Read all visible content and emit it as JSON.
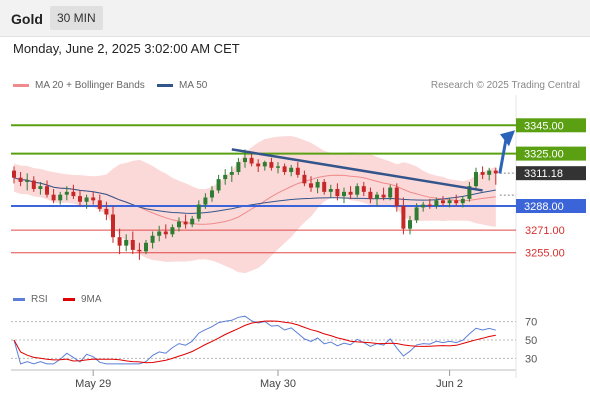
{
  "header": {
    "symbol": "Gold",
    "timeframe": "30 MIN"
  },
  "datetime": "Monday, June 2, 2025 3:02:00 AM CET",
  "legend": {
    "ma20": {
      "label": "MA 20 + Bollinger Bands",
      "color": "#f08a8a"
    },
    "ma50": {
      "label": "MA 50",
      "color": "#34558b"
    }
  },
  "research": "Research © 2025 Trading Central",
  "rsi_legend": {
    "rsi": {
      "label": "RSI",
      "color": "#5b7fd6"
    },
    "ma9": {
      "label": "9MA",
      "color": "#e00000"
    }
  },
  "chart_data": {
    "type": "candlestick",
    "price_range": [
      3250,
      3350
    ],
    "levels": [
      {
        "label": "3345.00",
        "value": 3345,
        "color": "#5aa012",
        "style": "resistance"
      },
      {
        "label": "3325.00",
        "value": 3325,
        "color": "#5aa012",
        "style": "resistance"
      },
      {
        "label": "3311.18",
        "value": 3311.18,
        "color": "#333333",
        "style": "last"
      },
      {
        "label": "3288.00",
        "value": 3288,
        "color": "#3a64d8",
        "style": "pivot"
      },
      {
        "label": "3271.00",
        "value": 3271,
        "color": "#e04848",
        "style": "support"
      },
      {
        "label": "3255.00",
        "value": 3255,
        "color": "#e04848",
        "style": "support"
      }
    ],
    "x_ticks": [
      "May 29",
      "May 30",
      "Jun 2"
    ],
    "rsi_ticks": [
      70,
      50,
      30
    ],
    "candles": [
      [
        3313,
        3316,
        3304,
        3308
      ],
      [
        3308,
        3312,
        3302,
        3305
      ],
      [
        3305,
        3311,
        3299,
        3306
      ],
      [
        3306,
        3309,
        3298,
        3300
      ],
      [
        3300,
        3305,
        3296,
        3302
      ],
      [
        3302,
        3306,
        3294,
        3296
      ],
      [
        3296,
        3300,
        3290,
        3292
      ],
      [
        3292,
        3298,
        3289,
        3296
      ],
      [
        3296,
        3302,
        3292,
        3298
      ],
      [
        3298,
        3303,
        3293,
        3295
      ],
      [
        3295,
        3299,
        3288,
        3291
      ],
      [
        3291,
        3296,
        3286,
        3294
      ],
      [
        3294,
        3298,
        3289,
        3292
      ],
      [
        3292,
        3296,
        3284,
        3286
      ],
      [
        3286,
        3291,
        3278,
        3282
      ],
      [
        3282,
        3288,
        3262,
        3266
      ],
      [
        3266,
        3272,
        3254,
        3260
      ],
      [
        3260,
        3268,
        3256,
        3264
      ],
      [
        3264,
        3270,
        3254,
        3257
      ],
      [
        3257,
        3262,
        3250,
        3256
      ],
      [
        3256,
        3264,
        3254,
        3262
      ],
      [
        3262,
        3270,
        3258,
        3267
      ],
      [
        3267,
        3274,
        3263,
        3270
      ],
      [
        3270,
        3275,
        3265,
        3268
      ],
      [
        3268,
        3275,
        3266,
        3273
      ],
      [
        3273,
        3280,
        3270,
        3277
      ],
      [
        3277,
        3282,
        3272,
        3275
      ],
      [
        3275,
        3281,
        3273,
        3279
      ],
      [
        3279,
        3292,
        3277,
        3289
      ],
      [
        3289,
        3297,
        3286,
        3294
      ],
      [
        3294,
        3302,
        3291,
        3299
      ],
      [
        3299,
        3310,
        3297,
        3307
      ],
      [
        3307,
        3314,
        3303,
        3310
      ],
      [
        3310,
        3316,
        3305,
        3312
      ],
      [
        3312,
        3322,
        3310,
        3319
      ],
      [
        3319,
        3328,
        3315,
        3322
      ],
      [
        3322,
        3326,
        3316,
        3318
      ],
      [
        3318,
        3321,
        3312,
        3316
      ],
      [
        3316,
        3320,
        3313,
        3319
      ],
      [
        3319,
        3322,
        3313,
        3315
      ],
      [
        3315,
        3319,
        3311,
        3316
      ],
      [
        3316,
        3318,
        3310,
        3312
      ],
      [
        3312,
        3317,
        3309,
        3315
      ],
      [
        3315,
        3319,
        3308,
        3310
      ],
      [
        3310,
        3313,
        3302,
        3304
      ],
      [
        3304,
        3309,
        3298,
        3301
      ],
      [
        3301,
        3307,
        3297,
        3305
      ],
      [
        3305,
        3307,
        3296,
        3298
      ],
      [
        3298,
        3303,
        3294,
        3300
      ],
      [
        3300,
        3304,
        3292,
        3295
      ],
      [
        3295,
        3301,
        3290,
        3298
      ],
      [
        3298,
        3302,
        3293,
        3296
      ],
      [
        3296,
        3304,
        3294,
        3302
      ],
      [
        3302,
        3305,
        3295,
        3298
      ],
      [
        3298,
        3301,
        3290,
        3293
      ],
      [
        3293,
        3298,
        3288,
        3296
      ],
      [
        3296,
        3301,
        3292,
        3294
      ],
      [
        3294,
        3303,
        3292,
        3301
      ],
      [
        3301,
        3304,
        3284,
        3288
      ],
      [
        3288,
        3294,
        3268,
        3272
      ],
      [
        3272,
        3281,
        3268,
        3278
      ],
      [
        3278,
        3290,
        3276,
        3287
      ],
      [
        3287,
        3291,
        3284,
        3289
      ],
      [
        3289,
        3293,
        3286,
        3288
      ],
      [
        3288,
        3294,
        3286,
        3292
      ],
      [
        3292,
        3295,
        3288,
        3290
      ],
      [
        3290,
        3294,
        3287,
        3292
      ],
      [
        3292,
        3296,
        3288,
        3290
      ],
      [
        3290,
        3295,
        3287,
        3293
      ],
      [
        3293,
        3305,
        3291,
        3302
      ],
      [
        3302,
        3315,
        3300,
        3312
      ],
      [
        3312,
        3316,
        3307,
        3310
      ],
      [
        3310,
        3315,
        3306,
        3313
      ],
      [
        3313,
        3315,
        3303,
        3311
      ]
    ]
  }
}
